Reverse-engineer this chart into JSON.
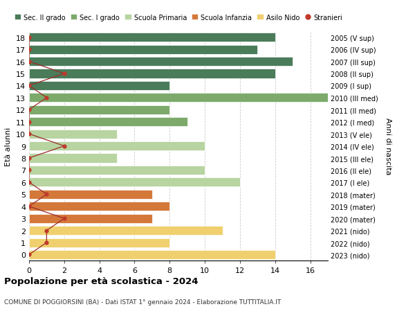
{
  "ages": [
    18,
    17,
    16,
    15,
    14,
    13,
    12,
    11,
    10,
    9,
    8,
    7,
    6,
    5,
    4,
    3,
    2,
    1,
    0
  ],
  "values": [
    14,
    13,
    15,
    14,
    8,
    17,
    8,
    9,
    5,
    10,
    5,
    10,
    12,
    7,
    8,
    7,
    11,
    8,
    14
  ],
  "stranieri": [
    0,
    0,
    0,
    2,
    0,
    1,
    0,
    0,
    0,
    2,
    0,
    0,
    0,
    1,
    0,
    2,
    1,
    1,
    0
  ],
  "bar_colors": [
    "#4a7c59",
    "#4a7c59",
    "#4a7c59",
    "#4a7c59",
    "#4a7c59",
    "#7daa6b",
    "#7daa6b",
    "#7daa6b",
    "#b8d4a0",
    "#b8d4a0",
    "#b8d4a0",
    "#b8d4a0",
    "#b8d4a0",
    "#d4783a",
    "#d4783a",
    "#d4783a",
    "#f0d06e",
    "#f0d06e",
    "#f0d06e"
  ],
  "right_labels": [
    "2005 (V sup)",
    "2006 (IV sup)",
    "2007 (III sup)",
    "2008 (II sup)",
    "2009 (I sup)",
    "2010 (III med)",
    "2011 (II med)",
    "2012 (I med)",
    "2013 (V ele)",
    "2014 (IV ele)",
    "2015 (III ele)",
    "2016 (II ele)",
    "2017 (I ele)",
    "2018 (mater)",
    "2019 (mater)",
    "2020 (mater)",
    "2021 (nido)",
    "2022 (nido)",
    "2023 (nido)"
  ],
  "legend_labels": [
    "Sec. II grado",
    "Sec. I grado",
    "Scuola Primaria",
    "Scuola Infanzia",
    "Asilo Nido",
    "Stranieri"
  ],
  "legend_colors": [
    "#4a7c59",
    "#7daa6b",
    "#b8d4a0",
    "#d4783a",
    "#f0d06e",
    "#c0392b"
  ],
  "title": "Popolazione per età scolastica - 2024",
  "subtitle": "COMUNE DI POGGIORSINI (BA) - Dati ISTAT 1° gennaio 2024 - Elaborazione TUTTITALIA.IT",
  "ylabel_left": "Età alunni",
  "ylabel_right": "Anni di nascita",
  "xlim": [
    0,
    17
  ],
  "xticks": [
    0,
    2,
    4,
    6,
    8,
    10,
    12,
    14,
    16
  ],
  "stranieri_color": "#c0392b",
  "stranieri_line_color": "#9b2b2b",
  "bg_color": "#ffffff",
  "grid_color": "#cccccc"
}
